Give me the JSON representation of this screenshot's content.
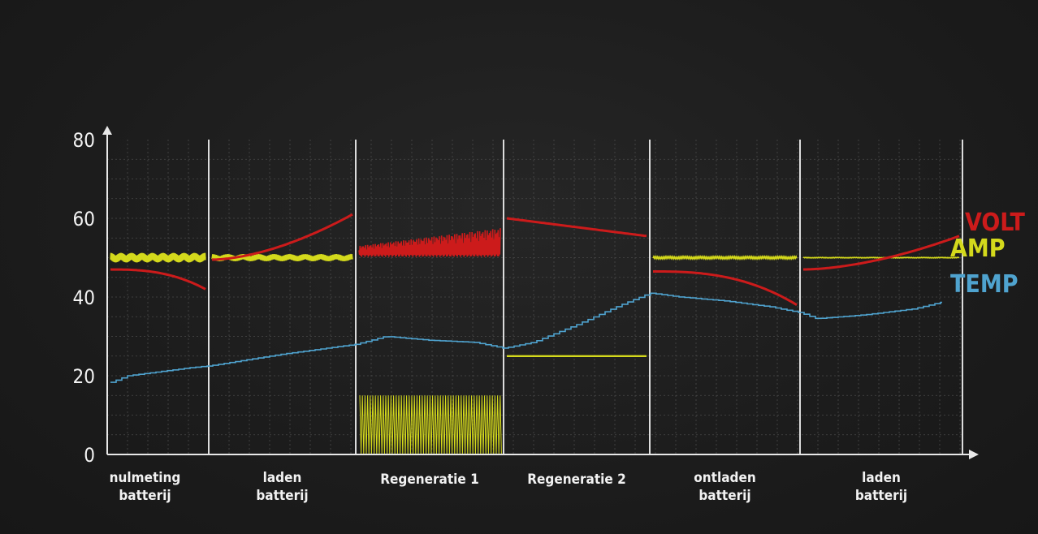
{
  "chart_data": {
    "type": "line",
    "ylim": [
      0,
      80
    ],
    "yticks": [
      "0",
      "20",
      "40",
      "60",
      "80"
    ],
    "grid": true,
    "legend_position": "right",
    "segments": [
      {
        "label_lines": [
          "nulmeting",
          "batterij"
        ]
      },
      {
        "label_lines": [
          "laden",
          "batterij"
        ]
      },
      {
        "label_lines": [
          "Regeneratie 1"
        ]
      },
      {
        "label_lines": [
          "Regeneratie 2"
        ]
      },
      {
        "label_lines": [
          "ontladen",
          "batterij"
        ]
      },
      {
        "label_lines": [
          "laden",
          "batterij"
        ]
      }
    ],
    "series": [
      {
        "name": "VOLT",
        "color": "#cc1b1b",
        "pieces": [
          {
            "segment": 0,
            "start": 47,
            "end": 42,
            "shape": "concave-drop"
          },
          {
            "segment": 1,
            "start": 49.5,
            "end": 61,
            "shape": "rise-accelerating"
          },
          {
            "segment": 2,
            "low": 50.5,
            "high_start": 53,
            "high_end": 57.5,
            "shape": "oscillating"
          },
          {
            "segment": 3,
            "start": 60,
            "end": 55.5,
            "shape": "linear"
          },
          {
            "segment": 4,
            "start": 46.5,
            "end": 38,
            "shape": "concave-drop"
          },
          {
            "segment": 5,
            "start": 47,
            "end": 55.5,
            "shape": "rise-accelerating"
          }
        ]
      },
      {
        "name": "AMP",
        "color": "#d4d91c",
        "pieces": [
          {
            "segment": 0,
            "value": 50,
            "noise": 1.2
          },
          {
            "segment": 1,
            "value": 50,
            "noise": 0.9
          },
          {
            "segment": 2,
            "low": 0,
            "high": 15,
            "shape": "pulse-train"
          },
          {
            "segment": 3,
            "value": 25,
            "noise": 0
          },
          {
            "segment": 4,
            "value": 50,
            "noise": 0.3
          },
          {
            "segment": 5,
            "value": 50,
            "noise": 0.1
          }
        ]
      },
      {
        "name": "TEMP",
        "color": "#4fa3cf",
        "points": [
          [
            0,
            18
          ],
          [
            0.2,
            20
          ],
          [
            0.5,
            21
          ],
          [
            0.8,
            22
          ],
          [
            1.0,
            22.5
          ],
          [
            1.5,
            25.5
          ],
          [
            2.0,
            28
          ],
          [
            2.2,
            30
          ],
          [
            2.5,
            29
          ],
          [
            2.8,
            28.5
          ],
          [
            3.0,
            27
          ],
          [
            3.2,
            28.5
          ],
          [
            3.5,
            33
          ],
          [
            3.8,
            38
          ],
          [
            4.0,
            41
          ],
          [
            4.2,
            40
          ],
          [
            4.5,
            39
          ],
          [
            4.8,
            37.5
          ],
          [
            5.0,
            36
          ],
          [
            5.1,
            34.5
          ],
          [
            5.4,
            35.5
          ],
          [
            5.7,
            37
          ],
          [
            5.9,
            39
          ],
          [
            6.0,
            40
          ]
        ]
      }
    ]
  }
}
